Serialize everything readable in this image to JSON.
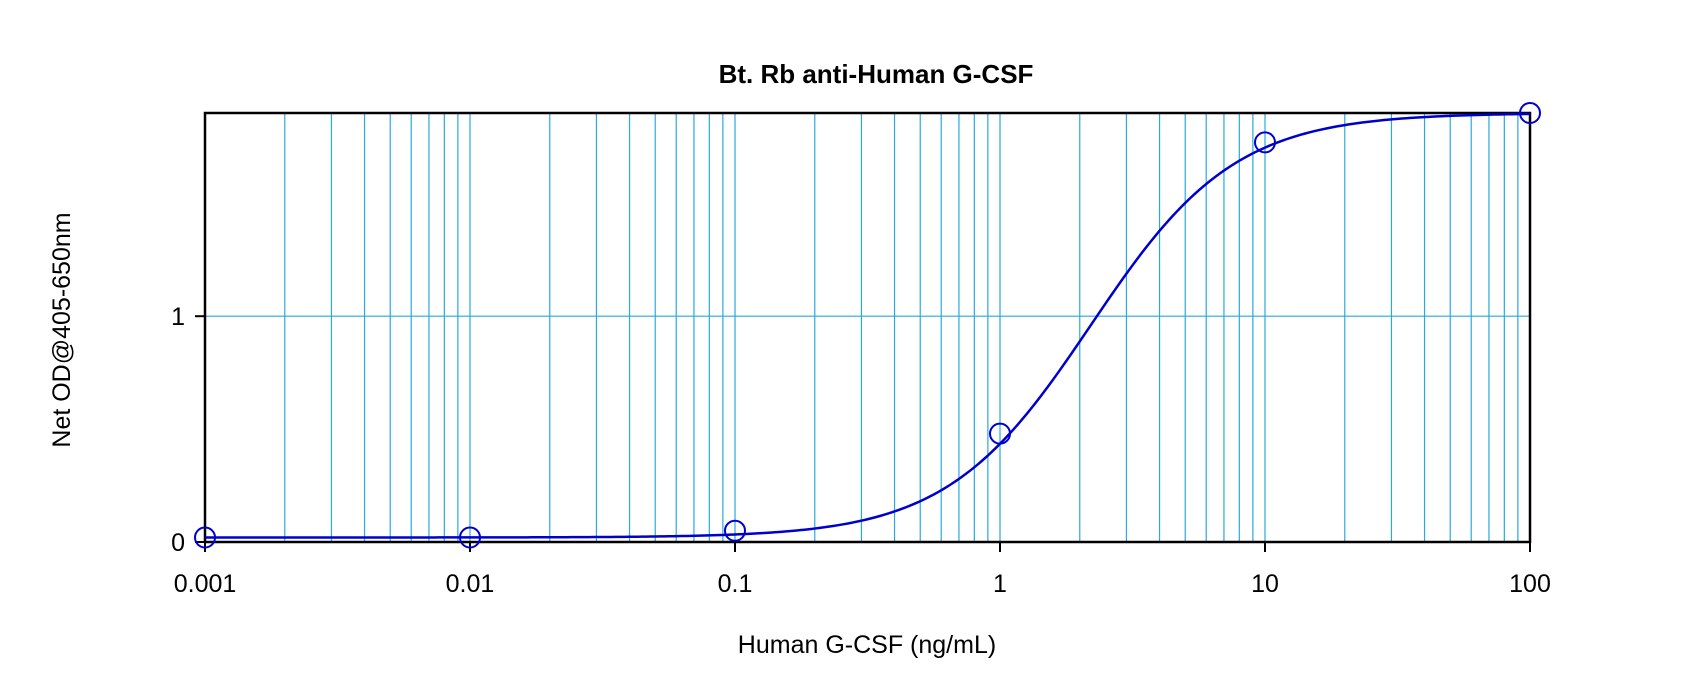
{
  "chart_data": {
    "type": "scatter",
    "title": "Bt. Rb anti-Human G-CSF",
    "xlabel": "Human G-CSF (ng/mL)",
    "ylabel": "Net OD@405-650nm",
    "x_scale": "log",
    "xlim": [
      0.001,
      100
    ],
    "ylim": [
      0,
      1.9
    ],
    "x_ticks": [
      "0.001",
      "0.01",
      "0.1",
      "1",
      "10",
      "100"
    ],
    "y_ticks": [
      "0",
      "1"
    ],
    "grid": true,
    "series": [
      {
        "points": [
          {
            "x": 0.001,
            "y": 0.02
          },
          {
            "x": 0.01,
            "y": 0.02
          },
          {
            "x": 0.1,
            "y": 0.05
          },
          {
            "x": 1,
            "y": 0.48
          },
          {
            "x": 10,
            "y": 1.77
          },
          {
            "x": 100,
            "y": 1.9
          }
        ],
        "fit_curve": {
          "model": "4PL",
          "bottom": 0.02,
          "top": 1.9,
          "ec50": 2.2,
          "hill": 1.6
        }
      }
    ],
    "colors": {
      "series": "#0000cc",
      "grid": "#29a9e0",
      "frame": "#000000"
    }
  }
}
